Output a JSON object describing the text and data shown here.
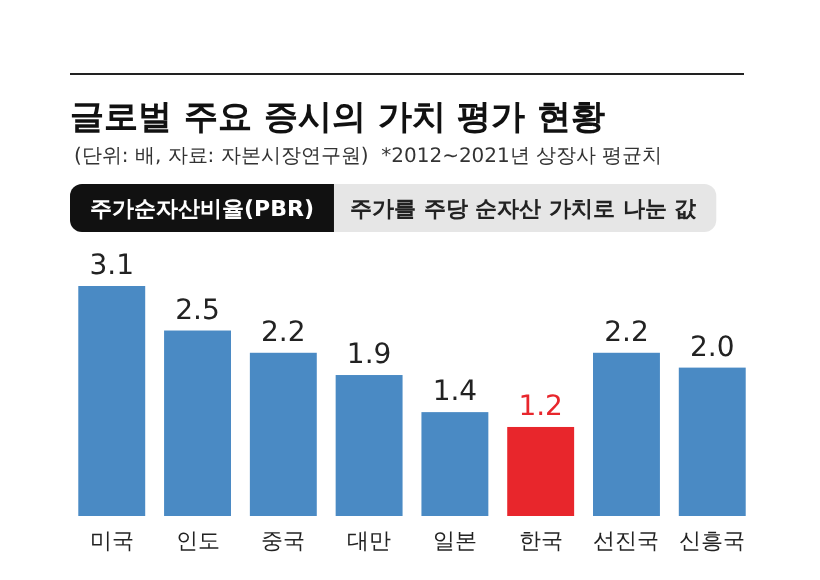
{
  "chart_data": {
    "type": "bar",
    "title": "글로벌 주요 증시의 가치 평가 현황",
    "subtitle": "(단위: 배, 자료: 자본시장연구원)  *2012~2021년 상장사 평균치",
    "annotations": [
      "주가순자산비율(PBR)",
      "주가를 주당 순자산 가치로 나눈 값"
    ],
    "categories": [
      "미국",
      "인도",
      "중국",
      "대만",
      "일본",
      "한국",
      "선진국",
      "신흥국"
    ],
    "values": [
      3.1,
      2.5,
      2.2,
      1.9,
      1.4,
      1.2,
      2.2,
      2.0
    ],
    "colors": [
      "#4a8ac4",
      "#4a8ac4",
      "#4a8ac4",
      "#4a8ac4",
      "#4a8ac4",
      "#e8262c",
      "#4a8ac4",
      "#4a8ac4"
    ],
    "value_labels": [
      "3.1",
      "2.5",
      "2.2",
      "1.9",
      "1.4",
      "1.2",
      "2.2",
      "2.0"
    ]
  }
}
